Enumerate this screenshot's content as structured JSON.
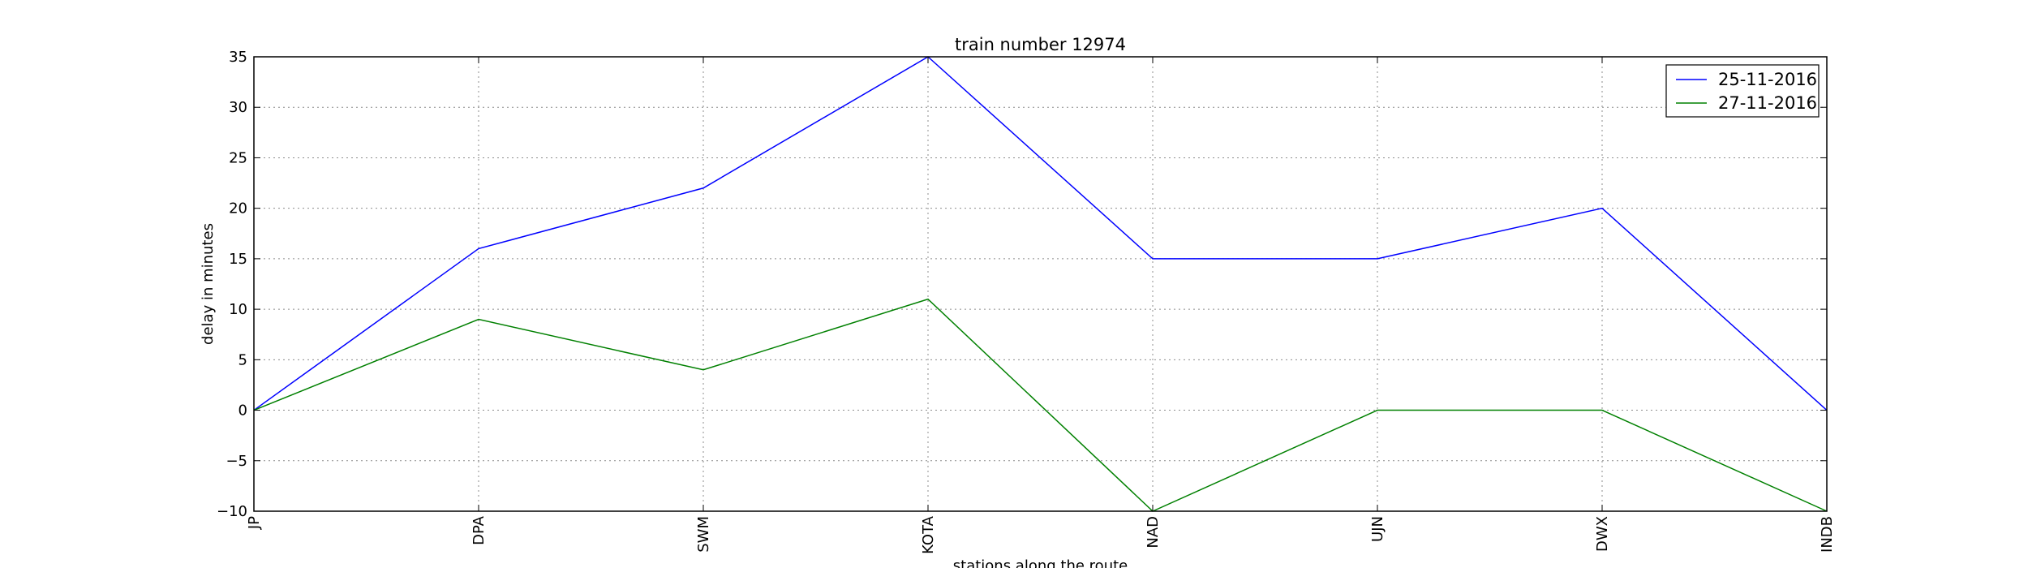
{
  "chart_data": {
    "type": "line",
    "title": "train number 12974",
    "xlabel": "stations along the route",
    "ylabel": "delay in minutes",
    "categories": [
      "JP",
      "DPA",
      "SWM",
      "KOTA",
      "NAD",
      "UJN",
      "DWX",
      "INDB"
    ],
    "ylim": [
      -10,
      35
    ],
    "yticks": [
      -10,
      -5,
      0,
      5,
      10,
      15,
      20,
      25,
      30,
      35
    ],
    "ytick_labels": [
      "−10",
      "−5",
      "0",
      "5",
      "10",
      "15",
      "20",
      "25",
      "30",
      "35"
    ],
    "grid": true,
    "legend_position": "top-right",
    "series": [
      {
        "name": "25-11-2016",
        "color": "#0000ff",
        "values": [
          0,
          16,
          22,
          35,
          15,
          15,
          20,
          0
        ]
      },
      {
        "name": "27-11-2016",
        "color": "#008000",
        "values": [
          0,
          9,
          4,
          11,
          -10,
          0,
          0,
          -10
        ]
      }
    ]
  }
}
